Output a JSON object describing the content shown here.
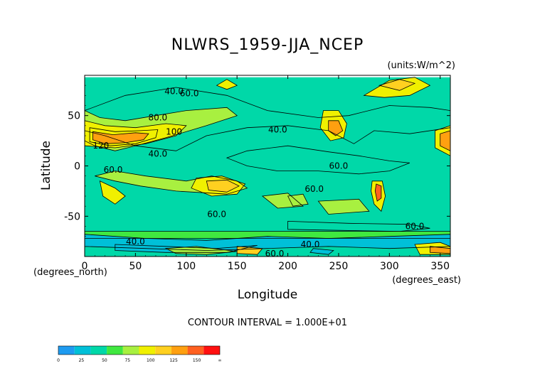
{
  "chart_data": {
    "type": "heatmap",
    "title": "NLWRS_1959-JJA_NCEP",
    "units": "(units:W/m^2)",
    "xlabel": "Longitude",
    "ylabel": "Latitude",
    "x_unit_label": "(degrees_east)",
    "y_unit_label": "(degrees_north)",
    "xlim": [
      0,
      360
    ],
    "ylim": [
      -90,
      90
    ],
    "x_ticks": [
      0,
      50,
      100,
      150,
      200,
      250,
      300,
      350
    ],
    "y_ticks": [
      -50,
      0,
      50
    ],
    "contour_interval_text": "CONTOUR INTERVAL = 1.000E+01",
    "colorbar": {
      "ticks": [
        "0",
        "25",
        "50",
        "75",
        "100",
        "125",
        "150",
        "∞"
      ],
      "colors": [
        "#1e9bf0",
        "#00c0d8",
        "#00d8a8",
        "#40e840",
        "#a8f040",
        "#f0f000",
        "#ffd020",
        "#ffa010",
        "#ff6020",
        "#ff1010"
      ]
    },
    "contour_labels": [
      {
        "text": "40.0",
        "lon": 88,
        "lat": 74
      },
      {
        "text": "60.0",
        "lon": 103,
        "lat": 72
      },
      {
        "text": "80.0",
        "lon": 72,
        "lat": 48
      },
      {
        "text": "100",
        "lon": 88,
        "lat": 34
      },
      {
        "text": "120",
        "lon": 16,
        "lat": 20
      },
      {
        "text": "40.0",
        "lon": 72,
        "lat": 12
      },
      {
        "text": "40.0",
        "lon": 190,
        "lat": 36
      },
      {
        "text": "60.0",
        "lon": 28,
        "lat": -4
      },
      {
        "text": "60.0",
        "lon": 250,
        "lat": 0
      },
      {
        "text": "60.0",
        "lon": 226,
        "lat": -23
      },
      {
        "text": "60.0",
        "lon": 130,
        "lat": -48
      },
      {
        "text": "60.0",
        "lon": 325,
        "lat": -60
      },
      {
        "text": "40.0",
        "lon": 50,
        "lat": -75
      },
      {
        "text": "40.0",
        "lon": 222,
        "lat": -78
      },
      {
        "text": "60.0",
        "lon": 187,
        "lat": -87
      }
    ],
    "regions": [
      {
        "value": 50,
        "points": [
          [
            0,
            88
          ],
          [
            360,
            88
          ],
          [
            360,
            -90
          ],
          [
            0,
            -90
          ]
        ]
      },
      {
        "value": 42,
        "points": [
          [
            0,
            55
          ],
          [
            40,
            70
          ],
          [
            90,
            78
          ],
          [
            140,
            70
          ],
          [
            180,
            55
          ],
          [
            230,
            48
          ],
          [
            260,
            50
          ],
          [
            300,
            60
          ],
          [
            340,
            58
          ],
          [
            360,
            55
          ],
          [
            360,
            38
          ],
          [
            320,
            32
          ],
          [
            285,
            35
          ],
          [
            265,
            22
          ],
          [
            240,
            35
          ],
          [
            200,
            40
          ],
          [
            160,
            38
          ],
          [
            120,
            30
          ],
          [
            90,
            15
          ],
          [
            50,
            20
          ],
          [
            20,
            30
          ],
          [
            0,
            35
          ]
        ]
      },
      {
        "value": 35,
        "points": [
          [
            160,
            15
          ],
          [
            200,
            20
          ],
          [
            240,
            14
          ],
          [
            270,
            10
          ],
          [
            300,
            5
          ],
          [
            320,
            3
          ],
          [
            300,
            -5
          ],
          [
            270,
            -8
          ],
          [
            230,
            -5
          ],
          [
            190,
            -5
          ],
          [
            160,
            0
          ],
          [
            140,
            8
          ]
        ]
      },
      {
        "value": 35,
        "points": [
          [
            200,
            -55
          ],
          [
            260,
            -57
          ],
          [
            320,
            -58
          ],
          [
            340,
            -62
          ],
          [
            310,
            -65
          ],
          [
            250,
            -64
          ],
          [
            200,
            -63
          ]
        ]
      },
      {
        "value": 70,
        "points": [
          [
            0,
            55
          ],
          [
            15,
            48
          ],
          [
            40,
            45
          ],
          [
            70,
            50
          ],
          [
            100,
            55
          ],
          [
            140,
            58
          ],
          [
            150,
            50
          ],
          [
            120,
            40
          ],
          [
            80,
            28
          ],
          [
            50,
            20
          ],
          [
            30,
            15
          ],
          [
            10,
            20
          ],
          [
            0,
            25
          ]
        ]
      },
      {
        "value": 85,
        "points": [
          [
            0,
            45
          ],
          [
            20,
            40
          ],
          [
            50,
            38
          ],
          [
            80,
            42
          ],
          [
            100,
            40
          ],
          [
            90,
            30
          ],
          [
            60,
            22
          ],
          [
            30,
            18
          ],
          [
            0,
            20
          ]
        ]
      },
      {
        "value": 100,
        "points": [
          [
            5,
            38
          ],
          [
            30,
            34
          ],
          [
            55,
            35
          ],
          [
            72,
            36
          ],
          [
            70,
            28
          ],
          [
            50,
            22
          ],
          [
            25,
            20
          ],
          [
            5,
            24
          ]
        ]
      },
      {
        "value": 125,
        "points": [
          [
            8,
            34
          ],
          [
            28,
            31
          ],
          [
            50,
            33
          ],
          [
            63,
            32
          ],
          [
            58,
            26
          ],
          [
            40,
            23
          ],
          [
            20,
            22
          ],
          [
            8,
            26
          ]
        ]
      },
      {
        "value": 70,
        "points": [
          [
            10,
            -10
          ],
          [
            30,
            -15
          ],
          [
            55,
            -20
          ],
          [
            90,
            -25
          ],
          [
            140,
            -28
          ],
          [
            160,
            -22
          ],
          [
            150,
            -15
          ],
          [
            125,
            -10
          ],
          [
            100,
            -15
          ],
          [
            60,
            -10
          ],
          [
            30,
            -5
          ]
        ]
      },
      {
        "value": 85,
        "points": [
          [
            15,
            -15
          ],
          [
            30,
            -22
          ],
          [
            40,
            -30
          ],
          [
            30,
            -38
          ],
          [
            18,
            -30
          ]
        ]
      },
      {
        "value": 95,
        "points": [
          [
            110,
            -12
          ],
          [
            135,
            -10
          ],
          [
            158,
            -18
          ],
          [
            150,
            -28
          ],
          [
            125,
            -30
          ],
          [
            105,
            -22
          ]
        ]
      },
      {
        "value": 115,
        "points": [
          [
            120,
            -15
          ],
          [
            140,
            -14
          ],
          [
            152,
            -20
          ],
          [
            140,
            -26
          ],
          [
            122,
            -24
          ]
        ]
      },
      {
        "value": 100,
        "points": [
          [
            235,
            55
          ],
          [
            250,
            55
          ],
          [
            258,
            42
          ],
          [
            255,
            28
          ],
          [
            242,
            25
          ],
          [
            232,
            38
          ]
        ]
      },
      {
        "value": 130,
        "points": [
          [
            240,
            45
          ],
          [
            250,
            45
          ],
          [
            254,
            35
          ],
          [
            247,
            30
          ],
          [
            240,
            35
          ]
        ]
      },
      {
        "value": 90,
        "points": [
          [
            283,
            -15
          ],
          [
            293,
            -15
          ],
          [
            296,
            -30
          ],
          [
            292,
            -45
          ],
          [
            285,
            -38
          ],
          [
            282,
            -25
          ]
        ]
      },
      {
        "value": 140,
        "points": [
          [
            287,
            -18
          ],
          [
            292,
            -20
          ],
          [
            292,
            -32
          ],
          [
            288,
            -35
          ],
          [
            286,
            -25
          ]
        ]
      },
      {
        "value": 85,
        "points": [
          [
            275,
            70
          ],
          [
            300,
            85
          ],
          [
            325,
            88
          ],
          [
            340,
            80
          ],
          [
            320,
            70
          ],
          [
            295,
            68
          ]
        ]
      },
      {
        "value": 110,
        "points": [
          [
            290,
            80
          ],
          [
            310,
            86
          ],
          [
            325,
            82
          ],
          [
            310,
            75
          ]
        ]
      },
      {
        "value": 100,
        "points": [
          [
            345,
            35
          ],
          [
            360,
            40
          ],
          [
            360,
            10
          ],
          [
            345,
            18
          ]
        ]
      },
      {
        "value": 130,
        "points": [
          [
            350,
            32
          ],
          [
            360,
            35
          ],
          [
            360,
            15
          ],
          [
            350,
            20
          ]
        ]
      },
      {
        "value": 70,
        "points": [
          [
            175,
            -30
          ],
          [
            200,
            -27
          ],
          [
            215,
            -40
          ],
          [
            190,
            -42
          ]
        ]
      },
      {
        "value": 80,
        "points": [
          [
            200,
            -30
          ],
          [
            215,
            -28
          ],
          [
            220,
            -38
          ],
          [
            205,
            -40
          ]
        ]
      },
      {
        "value": 70,
        "points": [
          [
            230,
            -35
          ],
          [
            270,
            -33
          ],
          [
            280,
            -45
          ],
          [
            240,
            -48
          ]
        ]
      },
      {
        "value": 60,
        "points": [
          [
            0,
            -65
          ],
          [
            360,
            -65
          ],
          [
            360,
            -72
          ],
          [
            0,
            -72
          ]
        ]
      },
      {
        "value": 30,
        "points": [
          [
            0,
            -68
          ],
          [
            60,
            -72
          ],
          [
            120,
            -74
          ],
          [
            180,
            -70
          ],
          [
            240,
            -72
          ],
          [
            300,
            -70
          ],
          [
            360,
            -68
          ],
          [
            360,
            -80
          ],
          [
            300,
            -82
          ],
          [
            240,
            -80
          ],
          [
            180,
            -82
          ],
          [
            120,
            -84
          ],
          [
            60,
            -82
          ],
          [
            0,
            -80
          ]
        ]
      },
      {
        "value": 20,
        "points": [
          [
            30,
            -78
          ],
          [
            80,
            -80
          ],
          [
            130,
            -82
          ],
          [
            170,
            -79
          ],
          [
            140,
            -86
          ],
          [
            80,
            -86
          ],
          [
            30,
            -84
          ]
        ]
      },
      {
        "value": 80,
        "points": [
          [
            80,
            -82
          ],
          [
            110,
            -80
          ],
          [
            150,
            -85
          ],
          [
            120,
            -88
          ],
          [
            90,
            -87
          ]
        ]
      },
      {
        "value": 110,
        "points": [
          [
            150,
            -80
          ],
          [
            175,
            -82
          ],
          [
            170,
            -88
          ],
          [
            150,
            -87
          ]
        ]
      },
      {
        "value": 100,
        "points": [
          [
            325,
            -78
          ],
          [
            350,
            -76
          ],
          [
            360,
            -80
          ],
          [
            360,
            -88
          ],
          [
            330,
            -88
          ]
        ]
      },
      {
        "value": 130,
        "points": [
          [
            340,
            -80
          ],
          [
            360,
            -82
          ],
          [
            360,
            -87
          ],
          [
            340,
            -86
          ]
        ]
      },
      {
        "value": 100,
        "points": [
          [
            130,
            80
          ],
          [
            140,
            86
          ],
          [
            150,
            80
          ],
          [
            140,
            76
          ]
        ]
      },
      {
        "value": 20,
        "points": [
          [
            225,
            -82
          ],
          [
            245,
            -84
          ],
          [
            240,
            -88
          ],
          [
            222,
            -86
          ]
        ]
      }
    ]
  }
}
